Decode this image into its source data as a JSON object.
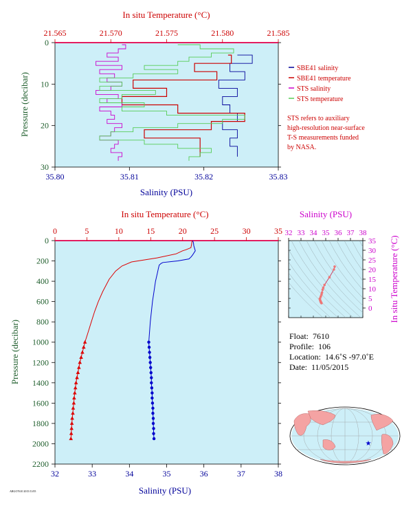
{
  "chart_data": [
    {
      "id": "upper",
      "type": "line",
      "xlabel": "Salinity (PSU)",
      "x2label": "In situ Temperature (°C)",
      "ylabel": "Pressure (decibar)",
      "xlim": [
        35.8,
        35.83
      ],
      "x2lim": [
        21.565,
        21.585
      ],
      "ylim": [
        0,
        30
      ],
      "xticks": [
        "35.80",
        "35.81",
        "35.82",
        "35.83"
      ],
      "x2ticks": [
        "21.565",
        "21.570",
        "21.575",
        "21.580",
        "21.585"
      ],
      "yticks": [
        "0",
        "10",
        "20",
        "30"
      ],
      "grid": false,
      "legend_position": "right",
      "series": [
        {
          "name": "SBE41 salinity",
          "color": "#000099",
          "axis": "salinity",
          "points": [
            [
              35.8245,
              3
            ],
            [
              35.8265,
              5
            ],
            [
              35.8235,
              7
            ],
            [
              35.8255,
              9
            ],
            [
              35.822,
              11
            ],
            [
              35.8245,
              13
            ],
            [
              35.8225,
              15
            ],
            [
              35.8235,
              17
            ],
            [
              35.8245,
              19
            ],
            [
              35.8225,
              21
            ],
            [
              35.8245,
              23
            ],
            [
              35.8235,
              25
            ],
            [
              35.8245,
              27.5
            ]
          ]
        },
        {
          "name": "SBE41 temperature",
          "color": "#cc0000",
          "axis": "temperature",
          "points": [
            [
              21.5805,
              3
            ],
            [
              21.5808,
              5
            ],
            [
              21.5775,
              7
            ],
            [
              21.5795,
              9
            ],
            [
              21.572,
              11
            ],
            [
              21.575,
              13
            ],
            [
              21.571,
              15
            ],
            [
              21.576,
              17
            ],
            [
              21.582,
              19
            ],
            [
              21.579,
              21
            ],
            [
              21.573,
              23
            ],
            [
              21.578,
              25
            ],
            [
              21.578,
              27.5
            ]
          ]
        },
        {
          "name": "STS salinity",
          "color": "#cc00cc",
          "axis": "salinity",
          "points": [
            [
              35.809,
              0.5
            ],
            [
              35.8095,
              1.5
            ],
            [
              35.8085,
              2.5
            ],
            [
              35.807,
              3.5
            ],
            [
              35.8085,
              4.5
            ],
            [
              35.8055,
              5.5
            ],
            [
              35.809,
              6.5
            ],
            [
              35.806,
              7.5
            ],
            [
              35.808,
              8.5
            ],
            [
              35.807,
              9.5
            ],
            [
              35.809,
              10.5
            ],
            [
              35.8075,
              11.5
            ],
            [
              35.8055,
              12.5
            ],
            [
              35.8085,
              13.5
            ],
            [
              35.807,
              14.5
            ],
            [
              35.809,
              15.5
            ],
            [
              35.806,
              16.5
            ],
            [
              35.8075,
              17.5
            ],
            [
              35.808,
              18.5
            ],
            [
              35.807,
              19.5
            ],
            [
              35.809,
              20.5
            ],
            [
              35.808,
              21.5
            ],
            [
              35.8075,
              22.5
            ],
            [
              35.806,
              23.5
            ],
            [
              35.8085,
              24.5
            ],
            [
              35.808,
              25.5
            ],
            [
              35.8075,
              26.5
            ],
            [
              35.809,
              27.5
            ],
            [
              35.8085,
              28.5
            ]
          ]
        },
        {
          "name": "STS temperature",
          "color": "#55cc55",
          "axis": "temperature",
          "points": [
            [
              21.576,
              0.5
            ],
            [
              21.578,
              1.5
            ],
            [
              21.581,
              2.5
            ],
            [
              21.579,
              3.5
            ],
            [
              21.577,
              4.5
            ],
            [
              21.576,
              5.5
            ],
            [
              21.573,
              6.5
            ],
            [
              21.576,
              7.5
            ],
            [
              21.572,
              8.5
            ],
            [
              21.569,
              9.5
            ],
            [
              21.571,
              10.5
            ],
            [
              21.569,
              11.5
            ],
            [
              21.574,
              12.5
            ],
            [
              21.571,
              13.5
            ],
            [
              21.569,
              14.5
            ],
            [
              21.573,
              15.5
            ],
            [
              21.571,
              16.5
            ],
            [
              21.575,
              17.5
            ],
            [
              21.582,
              18.5
            ],
            [
              21.58,
              19.5
            ],
            [
              21.576,
              20.5
            ],
            [
              21.572,
              21.5
            ],
            [
              21.57,
              22.5
            ],
            [
              21.569,
              23.5
            ],
            [
              21.573,
              24.5
            ],
            [
              21.576,
              25.5
            ],
            [
              21.579,
              26.5
            ],
            [
              21.578,
              27.5
            ],
            [
              21.577,
              28.5
            ]
          ]
        }
      ]
    },
    {
      "id": "lower",
      "type": "line",
      "xlabel": "Salinity (PSU)",
      "x2label": "In situ Temperature (°C)",
      "ylabel": "Pressure (decibar)",
      "xlim": [
        32,
        38
      ],
      "x2lim": [
        0,
        35
      ],
      "ylim": [
        0,
        2200
      ],
      "xticks": [
        "32",
        "33",
        "34",
        "35",
        "36",
        "37",
        "38"
      ],
      "x2ticks": [
        "0",
        "5",
        "10",
        "15",
        "20",
        "25",
        "30",
        "35"
      ],
      "yticks": [
        "0",
        "200",
        "400",
        "600",
        "800",
        "1000",
        "1200",
        "1400",
        "1600",
        "1800",
        "2000",
        "2200"
      ],
      "grid": false,
      "series": [
        {
          "name": "Salinity",
          "color": "#0000cc",
          "axis": "salinity",
          "marker": "dot",
          "marker_from_pressure": 1000,
          "points": [
            [
              35.7,
              0
            ],
            [
              35.72,
              20
            ],
            [
              35.73,
              50
            ],
            [
              35.77,
              100
            ],
            [
              35.7,
              140
            ],
            [
              35.66,
              160
            ],
            [
              35.6,
              180
            ],
            [
              35.3,
              200
            ],
            [
              34.9,
              215
            ],
            [
              34.85,
              225
            ],
            [
              34.8,
              240
            ],
            [
              34.78,
              270
            ],
            [
              34.75,
              320
            ],
            [
              34.7,
              400
            ],
            [
              34.66,
              500
            ],
            [
              34.62,
              600
            ],
            [
              34.59,
              700
            ],
            [
              34.56,
              800
            ],
            [
              34.54,
              900
            ],
            [
              34.52,
              1000
            ],
            [
              34.53,
              1050
            ],
            [
              34.54,
              1100
            ],
            [
              34.55,
              1150
            ],
            [
              34.56,
              1200
            ],
            [
              34.57,
              1250
            ],
            [
              34.58,
              1300
            ],
            [
              34.59,
              1350
            ],
            [
              34.59,
              1400
            ],
            [
              34.6,
              1450
            ],
            [
              34.61,
              1500
            ],
            [
              34.61,
              1550
            ],
            [
              34.62,
              1600
            ],
            [
              34.63,
              1650
            ],
            [
              34.63,
              1700
            ],
            [
              34.64,
              1750
            ],
            [
              34.64,
              1800
            ],
            [
              34.65,
              1850
            ],
            [
              34.65,
              1900
            ],
            [
              34.66,
              1950
            ]
          ]
        },
        {
          "name": "In situ Temperature",
          "color": "#dd0000",
          "axis": "temperature",
          "marker": "triangle",
          "marker_from_pressure": 1000,
          "points": [
            [
              21.5,
              0
            ],
            [
              21.4,
              40
            ],
            [
              21.3,
              70
            ],
            [
              20.5,
              90
            ],
            [
              20.0,
              100
            ],
            [
              19.0,
              130
            ],
            [
              16.0,
              170
            ],
            [
              12.0,
              210
            ],
            [
              10.5,
              250
            ],
            [
              9.5,
              300
            ],
            [
              8.5,
              380
            ],
            [
              7.5,
              500
            ],
            [
              6.8,
              600
            ],
            [
              6.2,
              700
            ],
            [
              5.7,
              800
            ],
            [
              5.2,
              900
            ],
            [
              4.7,
              1000
            ],
            [
              4.5,
              1050
            ],
            [
              4.3,
              1100
            ],
            [
              4.1,
              1150
            ],
            [
              3.9,
              1200
            ],
            [
              3.75,
              1250
            ],
            [
              3.6,
              1300
            ],
            [
              3.45,
              1350
            ],
            [
              3.3,
              1400
            ],
            [
              3.2,
              1450
            ],
            [
              3.1,
              1500
            ],
            [
              3.0,
              1550
            ],
            [
              2.95,
              1600
            ],
            [
              2.85,
              1650
            ],
            [
              2.8,
              1700
            ],
            [
              2.7,
              1750
            ],
            [
              2.65,
              1800
            ],
            [
              2.6,
              1850
            ],
            [
              2.55,
              1900
            ],
            [
              2.5,
              1950
            ]
          ]
        }
      ]
    },
    {
      "id": "ts-diagram",
      "type": "scatter",
      "xlabel": "Salinity (PSU)",
      "ylabel": "In situ Temperature (°C)",
      "xlim": [
        32,
        38
      ],
      "ylim": [
        -5,
        35
      ],
      "xticks": [
        "32",
        "33",
        "34",
        "35",
        "36",
        "37",
        "38"
      ],
      "yticks": [
        "0",
        "5",
        "10",
        "15",
        "20",
        "25",
        "30",
        "35"
      ],
      "series": [
        {
          "name": "T-S profile",
          "color": "#ee7777",
          "points": [
            [
              35.72,
              21.5
            ],
            [
              35.66,
              20.0
            ],
            [
              35.3,
              16.0
            ],
            [
              34.9,
              12.0
            ],
            [
              34.8,
              10.5
            ],
            [
              34.75,
              9.5
            ],
            [
              34.7,
              8.0
            ],
            [
              34.66,
              7.0
            ],
            [
              34.6,
              6.0
            ],
            [
              34.54,
              5.0
            ],
            [
              34.52,
              4.7
            ],
            [
              34.55,
              4.0
            ],
            [
              34.58,
              3.5
            ],
            [
              34.6,
              3.2
            ],
            [
              34.62,
              2.9
            ],
            [
              34.64,
              2.7
            ],
            [
              34.66,
              2.5
            ]
          ]
        }
      ]
    }
  ],
  "legend": {
    "items": [
      {
        "label": "SBE41 salinity",
        "color": "#000099"
      },
      {
        "label": "SBE41 temperature",
        "color": "#cc0000"
      },
      {
        "label": "STS salinity",
        "color": "#cc00cc"
      },
      {
        "label": "STS temperature",
        "color": "#55cc55"
      }
    ],
    "note": [
      "STS refers to auxiliary",
      "high-resolution near-surface",
      "T-S measurements funded",
      "by NASA."
    ]
  },
  "float_info": {
    "float_label": "Float:",
    "float_value": "7610",
    "profile_label": "Profile:",
    "profile_value": "106",
    "location_label": "Location:",
    "location_value": "14.6˚S  -97.0˚E",
    "date_label": "Date:",
    "date_value": "11/05/2015"
  },
  "map": {
    "marker_symbol": "★",
    "marker_color": "#0000cc"
  },
  "footer_id": "ARGO7610 2015/11/05"
}
